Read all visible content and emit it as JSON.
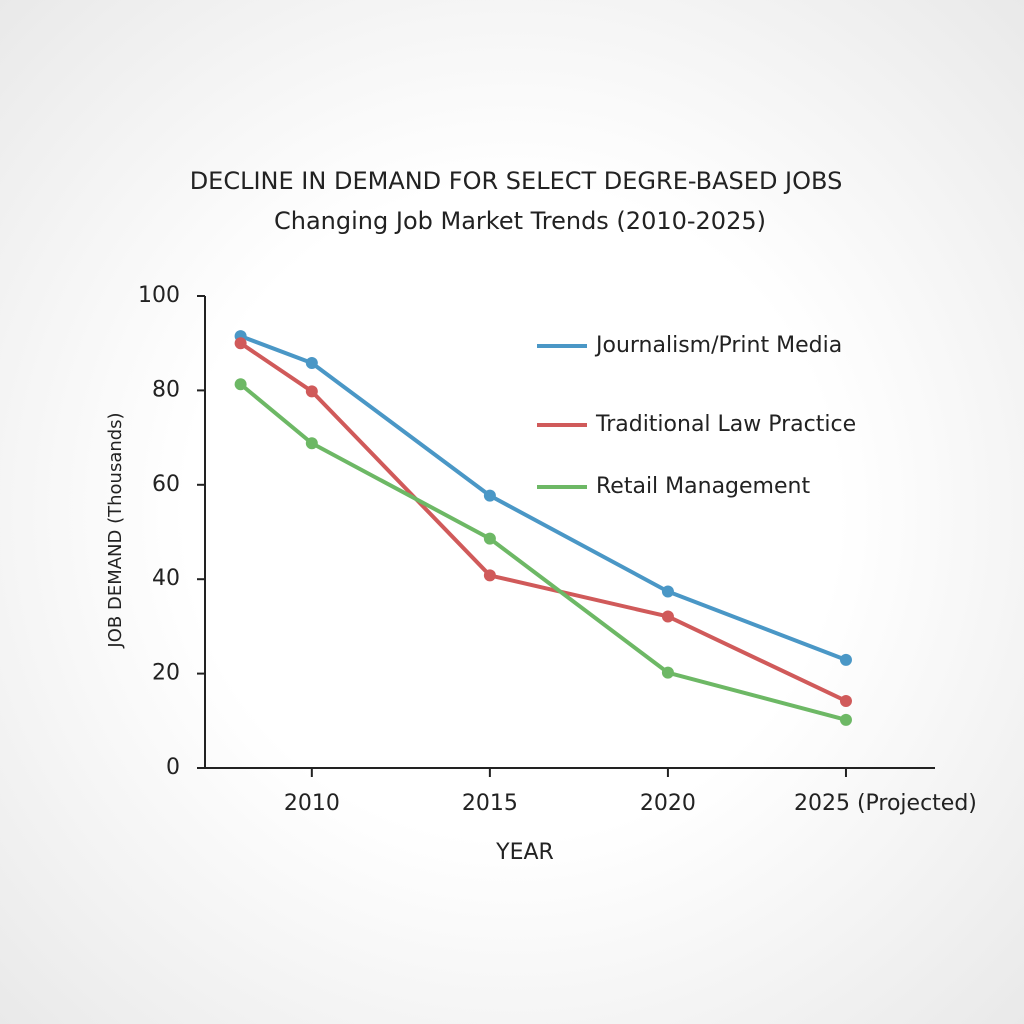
{
  "chart_data": {
    "type": "line",
    "title": "DECLINE IN DEMAND FOR SELECT DEGRE-BASED JOBS",
    "subtitle": "Changing Job Market Trends (2010-2025)",
    "x_label": "YEAR",
    "y_label": "JOB DEMAND (Thousands)",
    "x": [
      2008,
      2010,
      2015,
      2020,
      2025
    ],
    "xlim": [
      2007,
      2027.5
    ],
    "xticks": [
      2010,
      2015,
      2020,
      {
        "value": 2025,
        "label": "2025 (Projected)"
      }
    ],
    "ylim": [
      0,
      100
    ],
    "yticks": [
      0,
      20,
      40,
      60,
      80,
      100
    ],
    "grid": false,
    "legend": "upper right",
    "series": [
      {
        "name": "Journalism/Print Media",
        "color": "#4a97c6",
        "values": [
          91.5,
          85.8,
          57.7,
          37.4,
          22.9
        ]
      },
      {
        "name": "Traditional Law Practice",
        "color": "#d05a5a",
        "values": [
          90,
          79.8,
          40.8,
          32.1,
          14.2
        ]
      },
      {
        "name": "Retail Management",
        "color": "#6db865",
        "values": [
          81.3,
          68.8,
          48.6,
          20.2,
          10.2
        ]
      }
    ]
  }
}
